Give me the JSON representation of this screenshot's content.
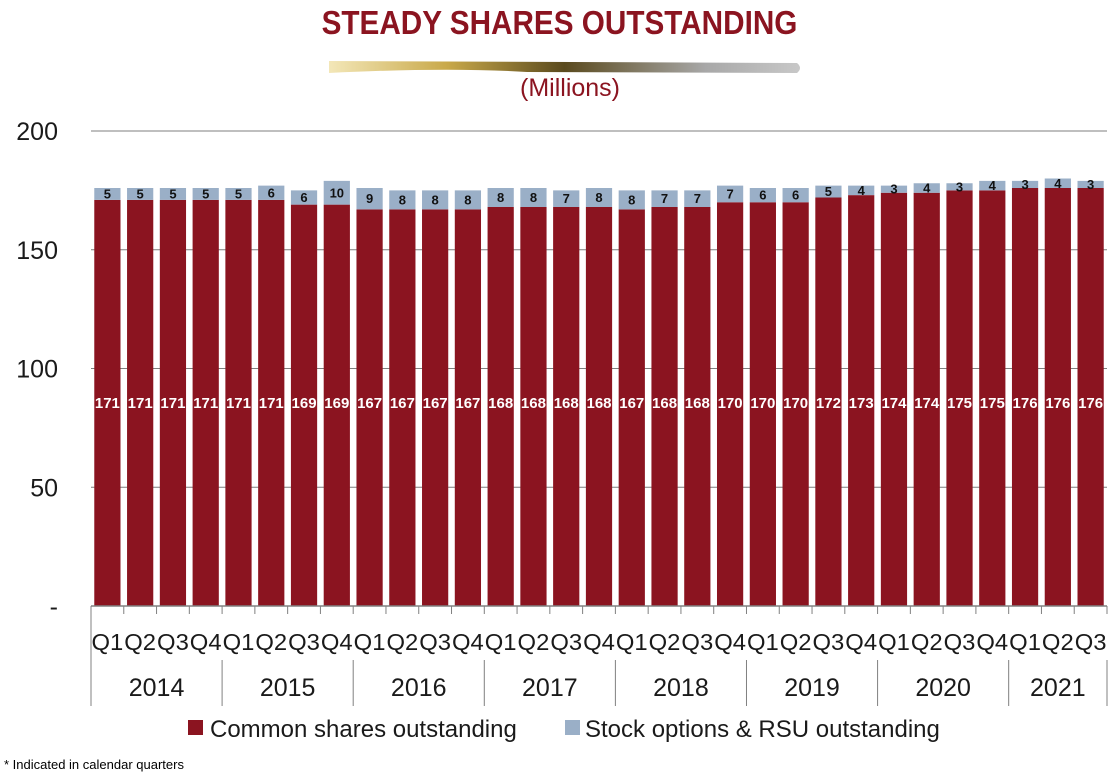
{
  "header": {
    "title": "STEADY SHARES OUTSTANDING",
    "subtitle": "(Millions)"
  },
  "footnote": "*   Indicated in calendar quarters",
  "colors": {
    "title": "#8b1420",
    "common": "#8b1420",
    "options": "#9aafc7",
    "grid": "#7f7f7f"
  },
  "chart_data": {
    "type": "bar",
    "stacked": true,
    "title": "STEADY SHARES OUTSTANDING",
    "subtitle": "(Millions)",
    "y_ticks": [
      "-",
      "50",
      "100",
      "150",
      "200"
    ],
    "y_tick_values": [
      0,
      50,
      100,
      150,
      200
    ],
    "ylim": [
      0,
      200
    ],
    "grid": true,
    "legend_position": "bottom",
    "categories": [
      "Q1",
      "Q2",
      "Q3",
      "Q4",
      "Q1",
      "Q2",
      "Q3",
      "Q4",
      "Q1",
      "Q2",
      "Q3",
      "Q4",
      "Q1",
      "Q2",
      "Q3",
      "Q4",
      "Q1",
      "Q2",
      "Q3",
      "Q4",
      "Q1",
      "Q2",
      "Q3",
      "Q4",
      "Q1",
      "Q2",
      "Q3",
      "Q4",
      "Q1",
      "Q2",
      "Q3"
    ],
    "years": [
      {
        "label": "2014",
        "quarters": 4
      },
      {
        "label": "2015",
        "quarters": 4
      },
      {
        "label": "2016",
        "quarters": 4
      },
      {
        "label": "2017",
        "quarters": 4
      },
      {
        "label": "2018",
        "quarters": 4
      },
      {
        "label": "2019",
        "quarters": 4
      },
      {
        "label": "2020",
        "quarters": 4
      },
      {
        "label": "2021",
        "quarters": 3
      }
    ],
    "series": [
      {
        "name": "Common shares outstanding",
        "values": [
          171,
          171,
          171,
          171,
          171,
          171,
          169,
          169,
          167,
          167,
          167,
          167,
          168,
          168,
          168,
          168,
          167,
          168,
          168,
          170,
          170,
          170,
          172,
          173,
          174,
          174,
          175,
          175,
          176,
          176,
          176
        ]
      },
      {
        "name": "Stock options & RSU outstanding",
        "values": [
          5,
          5,
          5,
          5,
          5,
          6,
          6,
          10,
          9,
          8,
          8,
          8,
          8,
          8,
          7,
          8,
          8,
          7,
          7,
          7,
          6,
          6,
          5,
          4,
          3,
          4,
          3,
          4,
          3,
          4,
          3
        ]
      }
    ]
  }
}
